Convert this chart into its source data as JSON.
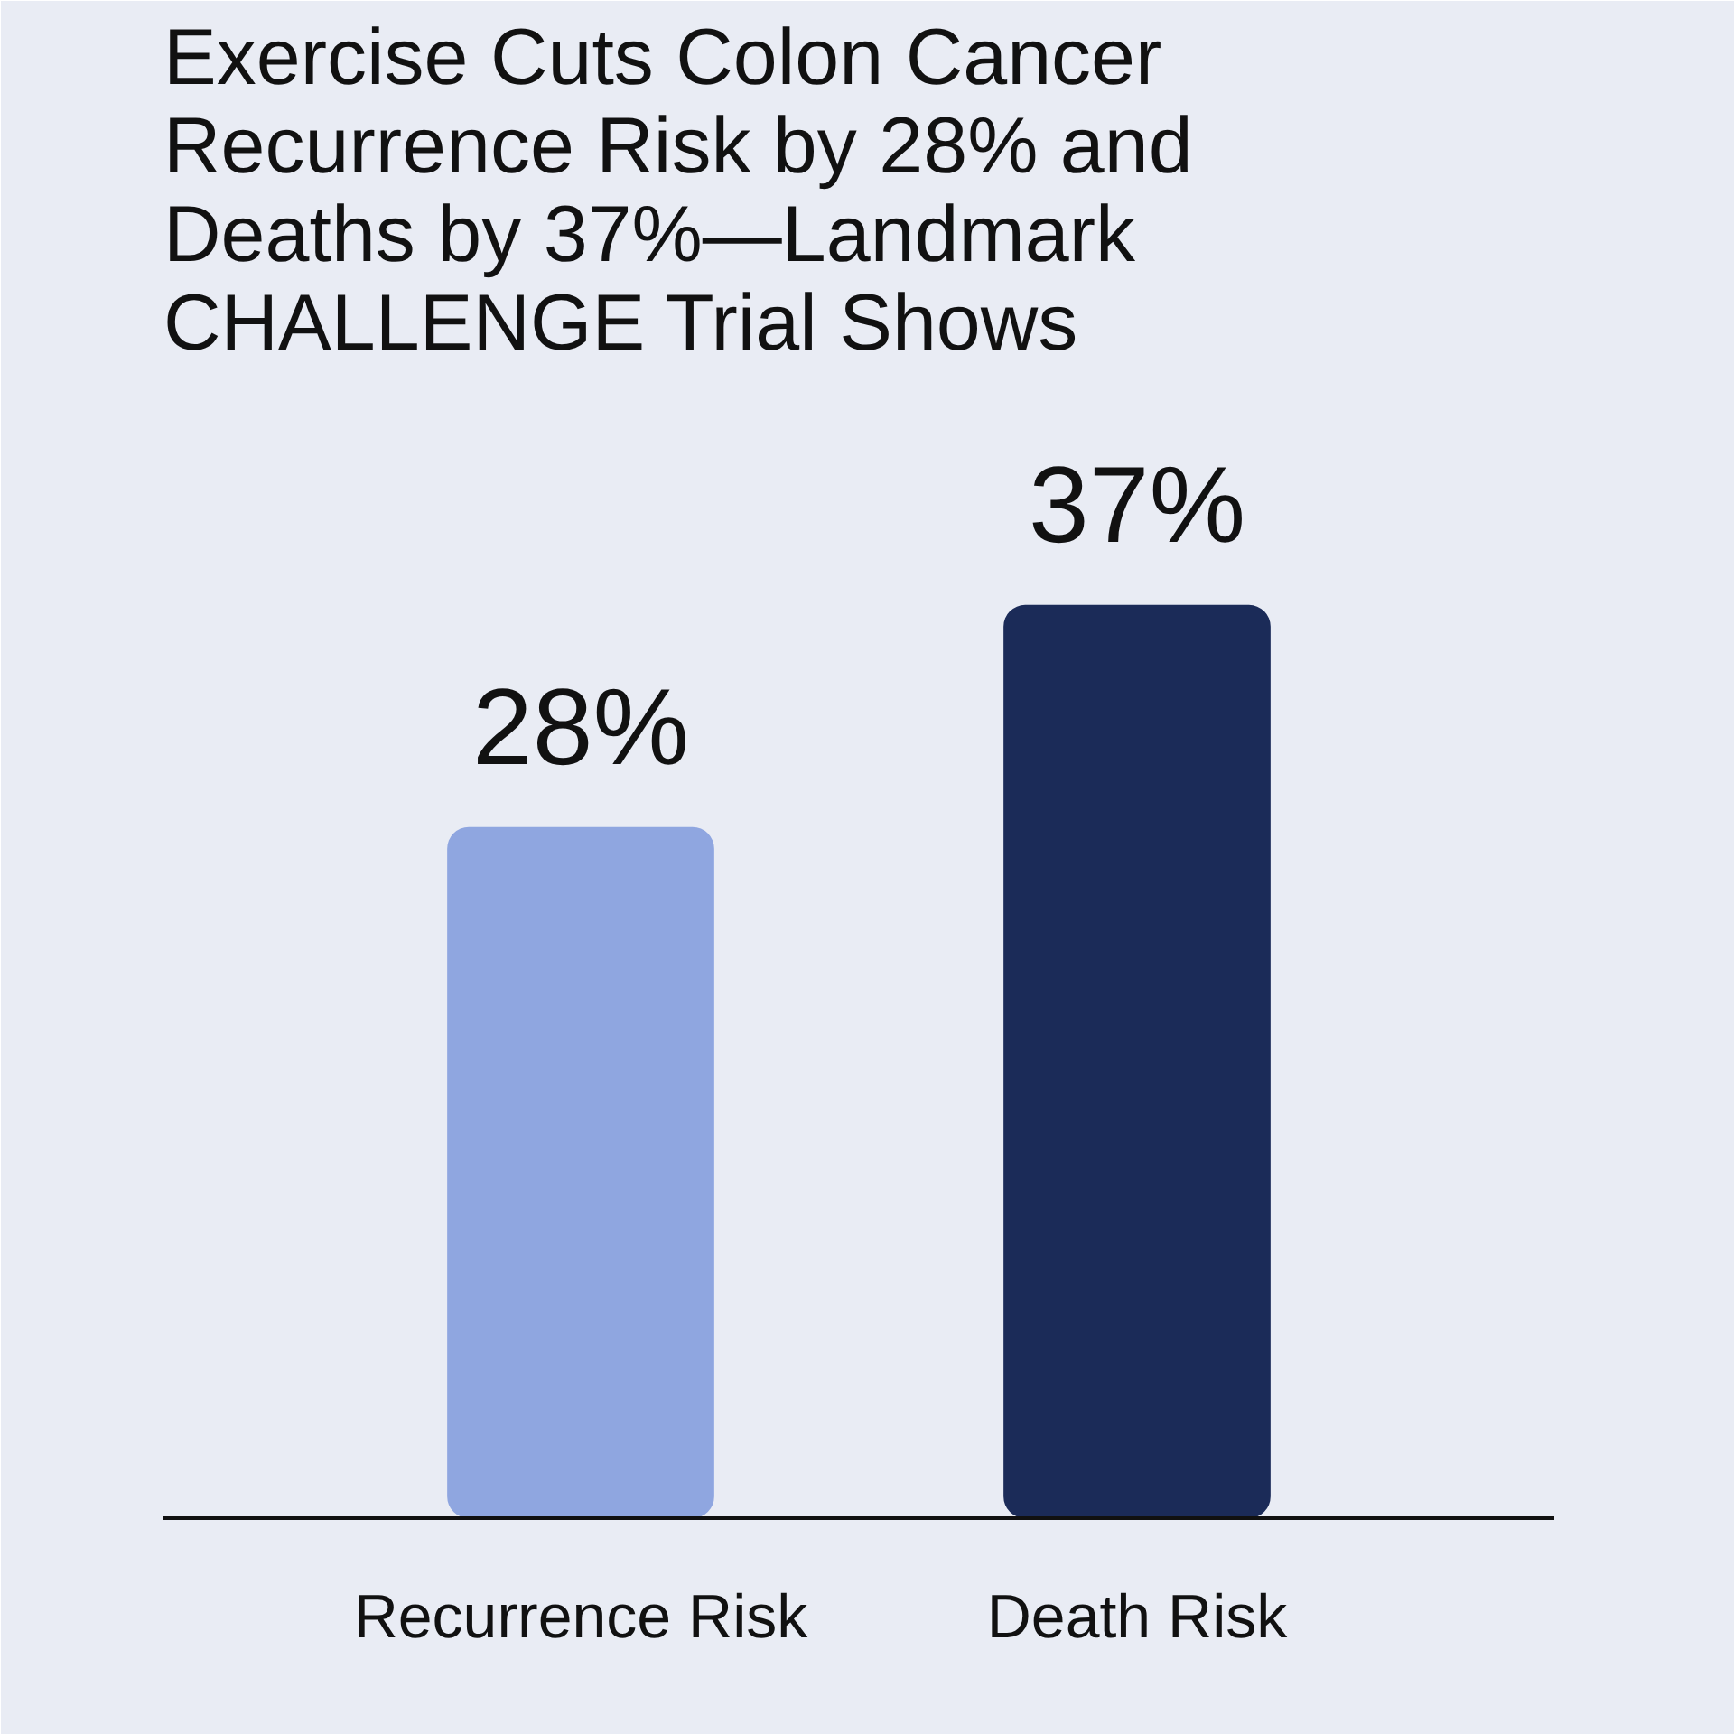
{
  "chart_data": {
    "type": "bar",
    "title": "Exercise Cuts Colon Cancer Recurrence Risk by 28% and Deaths by 37%—Landmark CHALLENGE Trial Shows",
    "categories": [
      "Recurrence Risk",
      "Death Risk"
    ],
    "values": [
      28,
      37
    ],
    "colors": [
      "#8fa6e0",
      "#1b2b58"
    ],
    "value_labels": [
      "28%",
      "37%"
    ]
  }
}
